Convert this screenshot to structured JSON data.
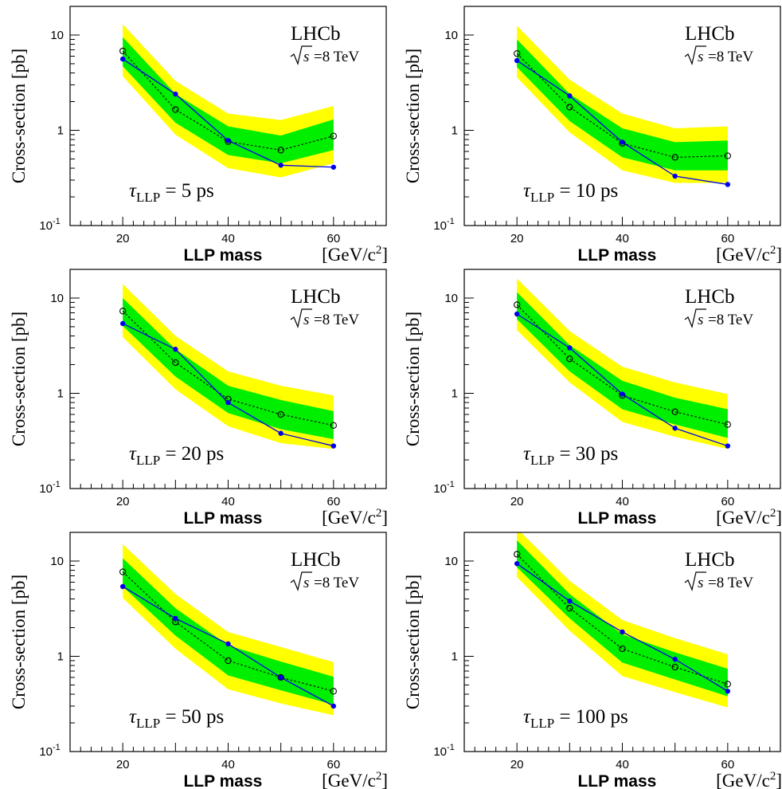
{
  "common": {
    "experiment_label": "LHCb",
    "energy_label": "=8 TeV",
    "energy_symbol": "s",
    "xlabel": "LLP mass",
    "xunit_main": "[GeV/c",
    "xunit_sup": "2",
    "xunit_close": "]",
    "ylabel": "Cross-section [pb]",
    "tau_symbol": "τ",
    "tau_sub": "LLP",
    "tau_unit": "ps",
    "ytick_labels": [
      {
        "value": 0.1,
        "base": "10",
        "exp": "-1"
      },
      {
        "value": 1,
        "base": "1",
        "exp": ""
      },
      {
        "value": 10,
        "base": "10",
        "exp": ""
      }
    ],
    "xtick_labels": [
      "20",
      "40",
      "60"
    ],
    "colors": {
      "band_2sigma": "#ffff00",
      "band_1sigma": "#00ee00",
      "observed": "#0000ee",
      "expected": "#000000"
    }
  },
  "chart_data": [
    {
      "type": "line",
      "tau_value": "5",
      "x": [
        20,
        30,
        40,
        50,
        60
      ],
      "xlim": [
        10,
        70
      ],
      "ylim": [
        0.1,
        20
      ],
      "yscale": "log",
      "series": [
        {
          "values": [
            5.6,
            2.4,
            0.78,
            0.43,
            0.41
          ]
        },
        {
          "values": [
            6.8,
            1.65,
            0.76,
            0.62,
            0.87
          ]
        }
      ],
      "band_2sigma": {
        "low": [
          3.7,
          0.9,
          0.4,
          0.32,
          0.45
        ],
        "high": [
          13,
          3.3,
          1.5,
          1.28,
          1.8
        ]
      },
      "band_1sigma": {
        "low": [
          4.7,
          1.2,
          0.55,
          0.45,
          0.62
        ],
        "high": [
          9.5,
          2.4,
          1.1,
          0.88,
          1.3
        ]
      }
    },
    {
      "type": "line",
      "tau_value": "10",
      "x": [
        20,
        30,
        40,
        50,
        60
      ],
      "xlim": [
        10,
        70
      ],
      "ylim": [
        0.1,
        20
      ],
      "yscale": "log",
      "series": [
        {
          "values": [
            5.4,
            2.3,
            0.75,
            0.33,
            0.27
          ]
        },
        {
          "values": [
            6.4,
            1.75,
            0.73,
            0.52,
            0.54
          ]
        }
      ],
      "band_2sigma": {
        "low": [
          3.6,
          0.95,
          0.38,
          0.28,
          0.28
        ],
        "high": [
          12.5,
          3.4,
          1.5,
          1.05,
          1.1
        ]
      },
      "band_1sigma": {
        "low": [
          4.6,
          1.25,
          0.52,
          0.38,
          0.38
        ],
        "high": [
          9,
          2.4,
          1.05,
          0.75,
          0.78
        ]
      }
    },
    {
      "type": "line",
      "tau_value": "20",
      "x": [
        20,
        30,
        40,
        50,
        60
      ],
      "xlim": [
        10,
        70
      ],
      "ylim": [
        0.1,
        20
      ],
      "yscale": "log",
      "series": [
        {
          "values": [
            5.4,
            2.9,
            0.8,
            0.38,
            0.28
          ]
        },
        {
          "values": [
            7.3,
            2.1,
            0.87,
            0.6,
            0.46
          ]
        }
      ],
      "band_2sigma": {
        "low": [
          3.9,
          1.1,
          0.45,
          0.3,
          0.26
        ],
        "high": [
          14,
          4,
          1.7,
          1.2,
          0.95
        ]
      },
      "band_1sigma": {
        "low": [
          5.1,
          1.5,
          0.62,
          0.42,
          0.33
        ],
        "high": [
          10,
          2.9,
          1.2,
          0.85,
          0.65
        ]
      }
    },
    {
      "type": "line",
      "tau_value": "30",
      "x": [
        20,
        30,
        40,
        50,
        60
      ],
      "xlim": [
        10,
        70
      ],
      "ylim": [
        0.1,
        20
      ],
      "yscale": "log",
      "series": [
        {
          "values": [
            6.8,
            3.0,
            0.98,
            0.43,
            0.28
          ]
        },
        {
          "values": [
            8.5,
            2.3,
            0.95,
            0.64,
            0.47
          ]
        }
      ],
      "band_2sigma": {
        "low": [
          4.6,
          1.3,
          0.5,
          0.35,
          0.26
        ],
        "high": [
          16,
          4.5,
          1.9,
          1.3,
          0.98
        ]
      },
      "band_1sigma": {
        "low": [
          6,
          1.7,
          0.68,
          0.47,
          0.34
        ],
        "high": [
          11.5,
          3.2,
          1.35,
          0.9,
          0.68
        ]
      }
    },
    {
      "type": "line",
      "tau_value": "50",
      "x": [
        20,
        30,
        40,
        50,
        60
      ],
      "xlim": [
        10,
        70
      ],
      "ylim": [
        0.1,
        20
      ],
      "yscale": "log",
      "series": [
        {
          "values": [
            5.4,
            2.5,
            1.35,
            0.6,
            0.3
          ]
        },
        {
          "values": [
            7.7,
            2.3,
            0.9,
            0.6,
            0.43
          ]
        }
      ],
      "band_2sigma": {
        "low": [
          4.1,
          1.2,
          0.45,
          0.32,
          0.24
        ],
        "high": [
          15,
          4.5,
          1.8,
          1.25,
          0.87
        ]
      },
      "band_1sigma": {
        "low": [
          5.4,
          1.65,
          0.63,
          0.44,
          0.31
        ],
        "high": [
          10.7,
          3.2,
          1.3,
          0.88,
          0.61
        ]
      }
    },
    {
      "type": "line",
      "tau_value": "100",
      "x": [
        20,
        30,
        40,
        50,
        60
      ],
      "xlim": [
        10,
        70
      ],
      "ylim": [
        0.1,
        20
      ],
      "yscale": "log",
      "series": [
        {
          "values": [
            9.4,
            3.8,
            1.8,
            0.93,
            0.43
          ]
        },
        {
          "values": [
            11.8,
            3.2,
            1.2,
            0.77,
            0.51
          ]
        }
      ],
      "band_2sigma": {
        "low": [
          6.8,
          1.85,
          0.62,
          0.42,
          0.29
        ],
        "high": [
          22,
          6.2,
          2.4,
          1.55,
          1.05
        ]
      },
      "band_1sigma": {
        "low": [
          8.6,
          2.5,
          0.86,
          0.57,
          0.38
        ],
        "high": [
          16.5,
          4.5,
          1.7,
          1.1,
          0.74
        ]
      }
    }
  ]
}
